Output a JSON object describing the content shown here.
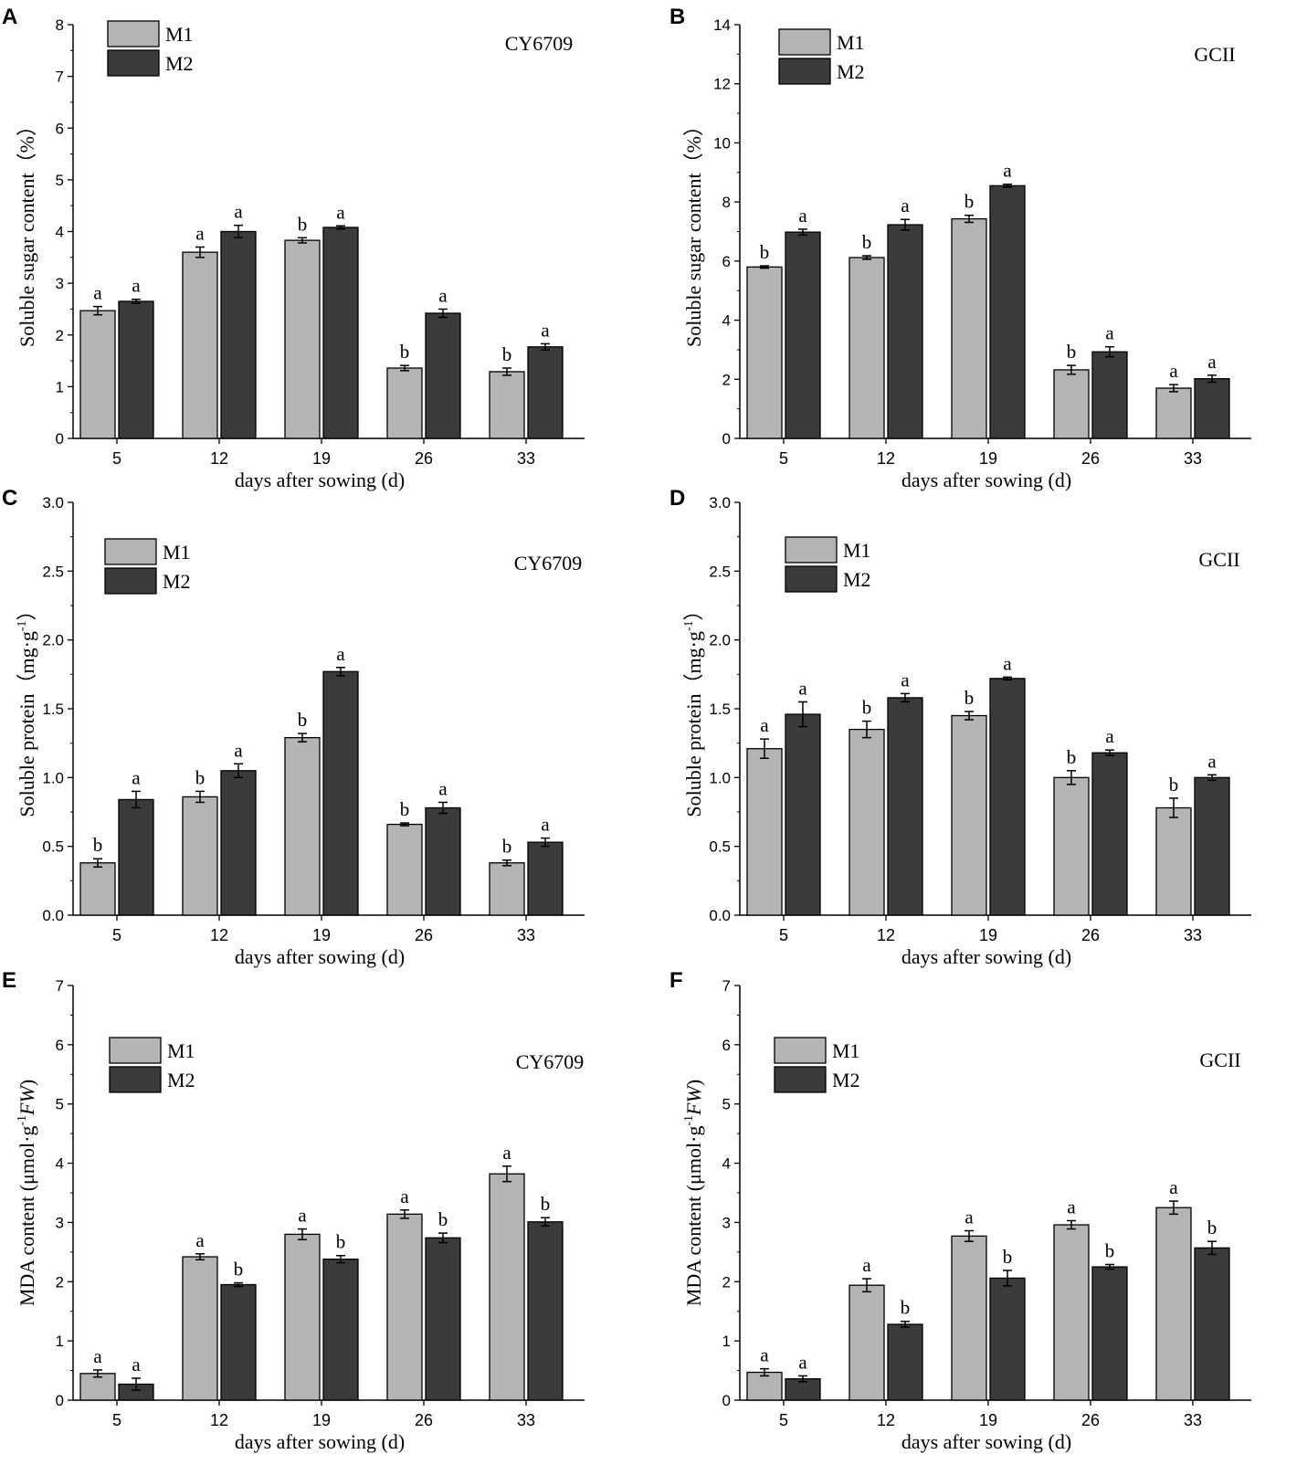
{
  "colors": {
    "M1": "#b4b4b4",
    "M2": "#3b3b3b",
    "axis": "#000000"
  },
  "chart_data": [
    {
      "type": "bar",
      "panel": "A",
      "cultivar": "CY6709",
      "categories": [
        "5",
        "12",
        "19",
        "26",
        "33"
      ],
      "xlabel": "days after sowing (d)",
      "ylabel": "Soluble sugar content（%）",
      "ylim": [
        0,
        8
      ],
      "yticks": [
        "0",
        "1",
        "2",
        "3",
        "4",
        "5",
        "6",
        "7",
        "8"
      ],
      "legend": [
        "M1",
        "M2"
      ],
      "series": [
        {
          "name": "M1",
          "values": [
            2.47,
            3.6,
            3.83,
            1.36,
            1.29
          ],
          "errors": [
            0.08,
            0.1,
            0.05,
            0.05,
            0.07
          ],
          "letters": [
            "a",
            "a",
            "b",
            "b",
            "b"
          ]
        },
        {
          "name": "M2",
          "values": [
            2.65,
            4.0,
            4.08,
            2.42,
            1.77
          ],
          "errors": [
            0.04,
            0.12,
            0.03,
            0.08,
            0.06
          ],
          "letters": [
            "a",
            "a",
            "a",
            "a",
            "a"
          ]
        }
      ]
    },
    {
      "type": "bar",
      "panel": "B",
      "cultivar": "GCII",
      "categories": [
        "5",
        "12",
        "19",
        "26",
        "33"
      ],
      "xlabel": "days after sowing (d)",
      "ylabel": "Soluble sugar content（%）",
      "ylim": [
        0,
        14
      ],
      "yticks": [
        "0",
        "2",
        "4",
        "6",
        "8",
        "10",
        "12",
        "14"
      ],
      "legend": [
        "M1",
        "M2"
      ],
      "series": [
        {
          "name": "M1",
          "values": [
            5.8,
            6.12,
            7.43,
            2.32,
            1.7
          ],
          "errors": [
            0.04,
            0.06,
            0.12,
            0.15,
            0.12
          ],
          "letters": [
            "b",
            "b",
            "b",
            "b",
            "a"
          ]
        },
        {
          "name": "M2",
          "values": [
            6.98,
            7.23,
            8.55,
            2.93,
            2.02
          ],
          "errors": [
            0.1,
            0.18,
            0.05,
            0.17,
            0.12
          ],
          "letters": [
            "a",
            "a",
            "a",
            "a",
            "a"
          ]
        }
      ]
    },
    {
      "type": "bar",
      "panel": "C",
      "cultivar": "CY6709",
      "categories": [
        "5",
        "12",
        "19",
        "26",
        "33"
      ],
      "xlabel": "days after sowing (d)",
      "ylabel": "Soluble protein（mg·g-1）",
      "ylabel_parts": [
        "Soluble protein（mg·g",
        "-1",
        "）"
      ],
      "ylim": [
        0,
        3
      ],
      "yticks": [
        "0.0",
        "0.5",
        "1.0",
        "1.5",
        "2.0",
        "2.5",
        "3.0"
      ],
      "legend": [
        "M1",
        "M2"
      ],
      "series": [
        {
          "name": "M1",
          "values": [
            0.38,
            0.86,
            1.29,
            0.66,
            0.38
          ],
          "errors": [
            0.03,
            0.04,
            0.03,
            0.01,
            0.02
          ],
          "letters": [
            "b",
            "b",
            "b",
            "b",
            "b"
          ]
        },
        {
          "name": "M2",
          "values": [
            0.84,
            1.05,
            1.77,
            0.78,
            0.53
          ],
          "errors": [
            0.06,
            0.05,
            0.03,
            0.04,
            0.03
          ],
          "letters": [
            "a",
            "a",
            "a",
            "a",
            "a"
          ]
        }
      ]
    },
    {
      "type": "bar",
      "panel": "D",
      "cultivar": "GCII",
      "categories": [
        "5",
        "12",
        "19",
        "26",
        "33"
      ],
      "xlabel": "days after sowing (d)",
      "ylabel": "Soluble protein（mg·g-1）",
      "ylabel_parts": [
        "Soluble protein（mg·g",
        "-1",
        "）"
      ],
      "ylim": [
        0,
        3
      ],
      "yticks": [
        "0.0",
        "0.5",
        "1.0",
        "1.5",
        "2.0",
        "2.5",
        "3.0"
      ],
      "legend": [
        "M1",
        "M2"
      ],
      "series": [
        {
          "name": "M1",
          "values": [
            1.21,
            1.35,
            1.45,
            1.0,
            0.78
          ],
          "errors": [
            0.07,
            0.06,
            0.03,
            0.05,
            0.07
          ],
          "letters": [
            "a",
            "b",
            "b",
            "b",
            "b"
          ]
        },
        {
          "name": "M2",
          "values": [
            1.46,
            1.58,
            1.72,
            1.18,
            1.0
          ],
          "errors": [
            0.09,
            0.03,
            0.01,
            0.02,
            0.02
          ],
          "letters": [
            "a",
            "a",
            "a",
            "a",
            "a"
          ]
        }
      ]
    },
    {
      "type": "bar",
      "panel": "E",
      "cultivar": "CY6709",
      "categories": [
        "5",
        "12",
        "19",
        "26",
        "33"
      ],
      "xlabel": "days after sowing (d)",
      "ylabel": "MDA content (μmol·g-1FW)",
      "ylabel_parts": [
        "MDA content (μmol·g",
        "-1",
        "FW",
        ")"
      ],
      "ylim": [
        0,
        7
      ],
      "yticks": [
        "0",
        "1",
        "2",
        "3",
        "4",
        "5",
        "6",
        "7"
      ],
      "legend": [
        "M1",
        "M2"
      ],
      "series": [
        {
          "name": "M1",
          "values": [
            0.45,
            2.42,
            2.8,
            3.14,
            3.82
          ],
          "errors": [
            0.06,
            0.05,
            0.09,
            0.07,
            0.13
          ],
          "letters": [
            "a",
            "a",
            "a",
            "a",
            "a"
          ]
        },
        {
          "name": "M2",
          "values": [
            0.27,
            1.95,
            2.38,
            2.74,
            3.01
          ],
          "errors": [
            0.1,
            0.03,
            0.06,
            0.08,
            0.07
          ],
          "letters": [
            "a",
            "b",
            "b",
            "b",
            "b"
          ]
        }
      ]
    },
    {
      "type": "bar",
      "panel": "F",
      "cultivar": "GCII",
      "categories": [
        "5",
        "12",
        "19",
        "26",
        "33"
      ],
      "xlabel": "days after sowing (d)",
      "ylabel": "MDA content (μmol·g-1FW)",
      "ylabel_parts": [
        "MDA content (μmol·g",
        "-1",
        "FW",
        ")"
      ],
      "ylim": [
        0,
        7
      ],
      "yticks": [
        "0",
        "1",
        "2",
        "3",
        "4",
        "5",
        "6",
        "7"
      ],
      "legend": [
        "M1",
        "M2"
      ],
      "series": [
        {
          "name": "M1",
          "values": [
            0.47,
            1.94,
            2.77,
            2.96,
            3.25
          ],
          "errors": [
            0.06,
            0.11,
            0.09,
            0.07,
            0.11
          ],
          "letters": [
            "a",
            "a",
            "a",
            "a",
            "a"
          ]
        },
        {
          "name": "M2",
          "values": [
            0.36,
            1.28,
            2.06,
            2.25,
            2.57
          ],
          "errors": [
            0.05,
            0.05,
            0.13,
            0.04,
            0.11
          ],
          "letters": [
            "a",
            "b",
            "b",
            "b",
            "b"
          ]
        }
      ]
    }
  ]
}
